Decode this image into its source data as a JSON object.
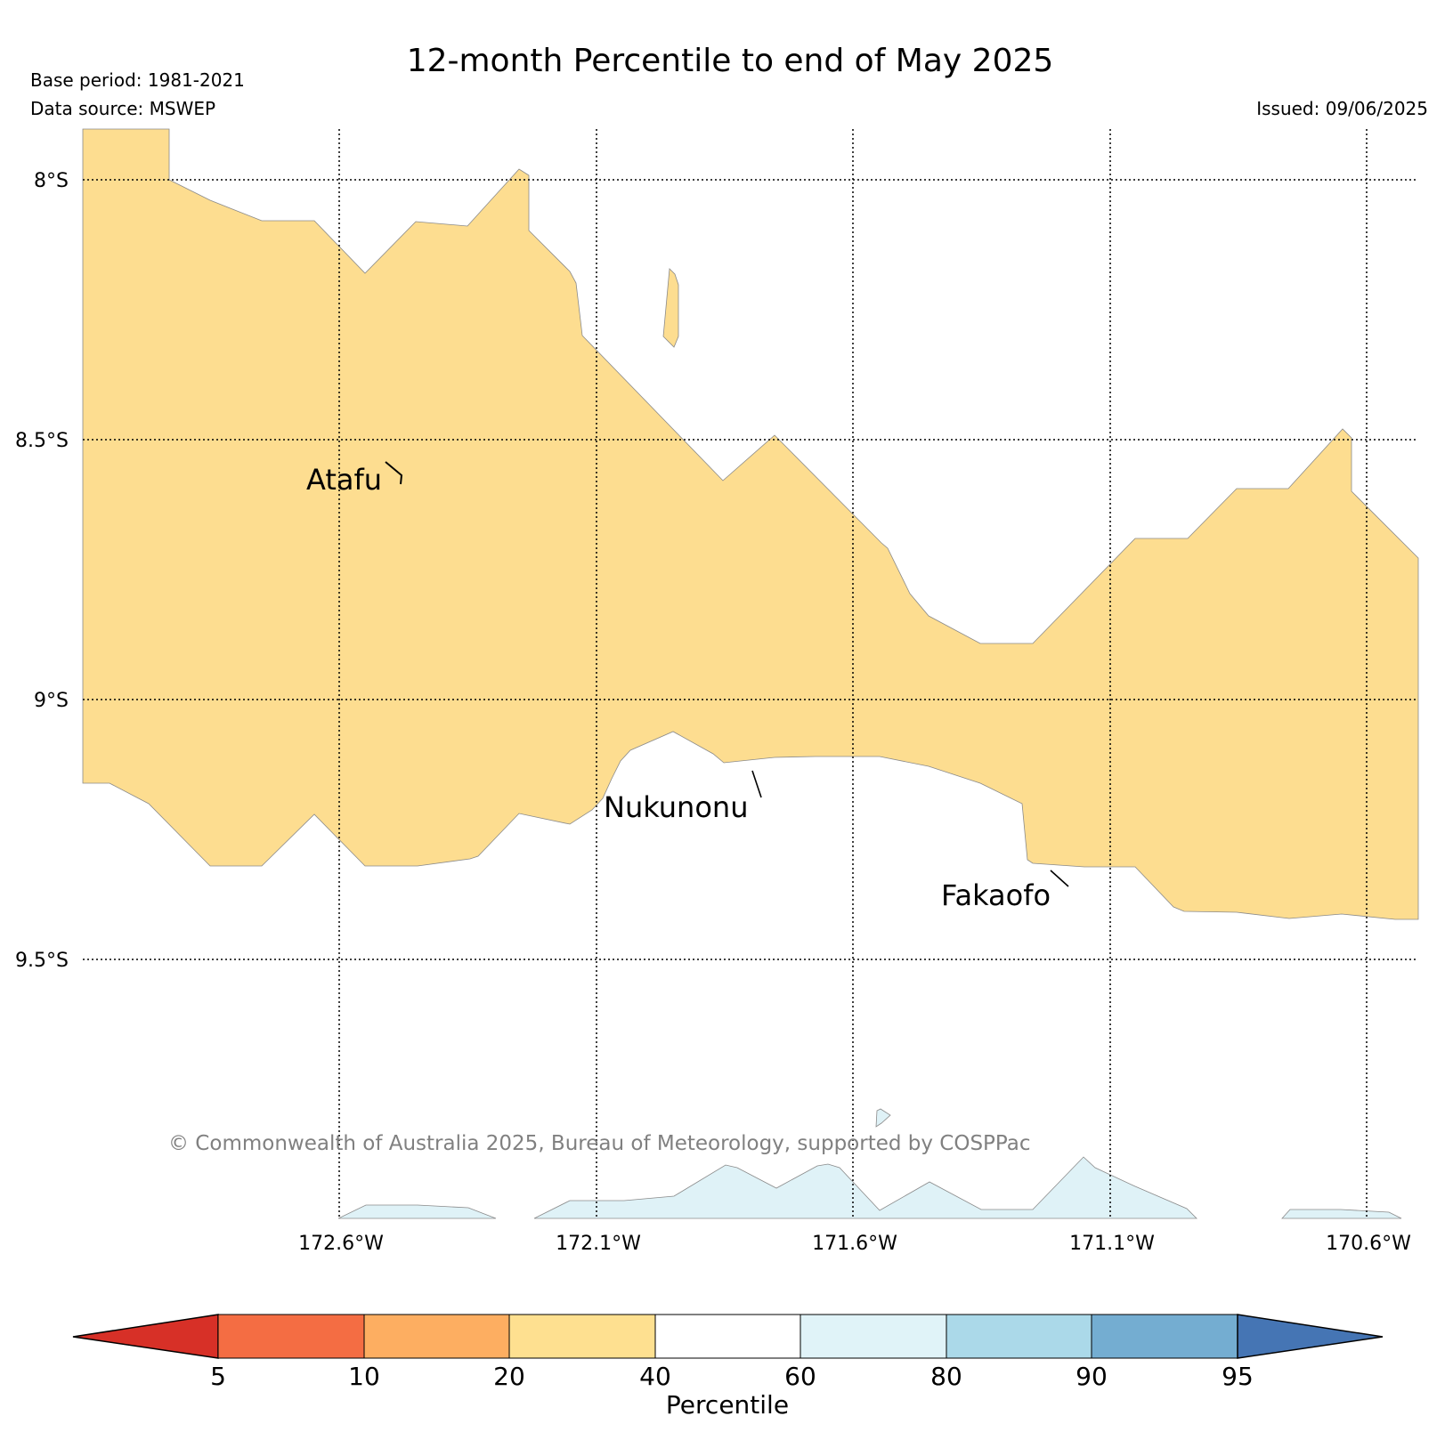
{
  "header": {
    "title": "12-month Percentile to end of May 2025",
    "base_period": "Base period: 1981-2021",
    "data_source": "Data source: MSWEP",
    "issued": "Issued: 09/06/2025"
  },
  "map": {
    "latitude_labels": [
      "8°S",
      "8.5°S",
      "9°S",
      "9.5°S"
    ],
    "longitude_labels": [
      "172.6°W",
      "172.1°W",
      "171.6°W",
      "171.1°W",
      "170.6°W"
    ],
    "places": [
      "Atafu",
      "Nukunonu",
      "Fakaofo"
    ],
    "region_colors": {
      "20-40": "#fddd90",
      "60-80": "#dff2f7",
      "40-60": "#ffffff"
    },
    "copyright": "© Commonwealth of Australia 2025, Bureau of Meteorology, supported by COSPPac"
  },
  "colorbar": {
    "label": "Percentile",
    "ticks": [
      "5",
      "10",
      "20",
      "40",
      "60",
      "80",
      "90",
      "95"
    ],
    "under_color": "#d73027",
    "over_color": "#4575b4",
    "bins": [
      {
        "range": "5-10",
        "color": "#f46d43"
      },
      {
        "range": "10-20",
        "color": "#fdae61"
      },
      {
        "range": "20-40",
        "color": "#fee090"
      },
      {
        "range": "40-60",
        "color": "#ffffff"
      },
      {
        "range": "60-80",
        "color": "#e0f3f8"
      },
      {
        "range": "80-90",
        "color": "#abd9e9"
      },
      {
        "range": "90-95",
        "color": "#74add1"
      }
    ]
  }
}
